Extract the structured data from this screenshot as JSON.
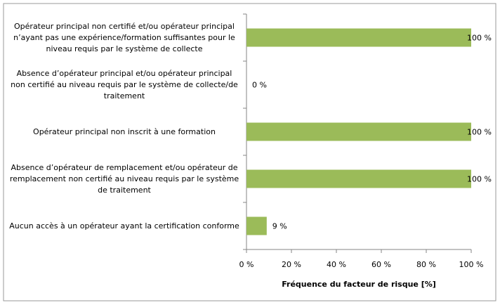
{
  "chart_data": {
    "type": "hbar",
    "xlabel": "Fréquence du facteur de risque [%]",
    "categories": [
      "Opérateur principal non certifié et/ou opérateur principal n’ayant pas une expérience/formation suffisantes pour le niveau requis par le système de collecte",
      "Absence d’opérateur principal et/ou opérateur principal non certifié au niveau requis par le système de collecte/de traitement",
      "Opérateur principal non inscrit à une formation",
      "Absence d’opérateur de remplacement et/ou opérateur de remplacement non certifié au niveau requis par le système de traitement",
      "Aucun accès à un opérateur ayant la certification conforme"
    ],
    "values": [
      100,
      0,
      100,
      100,
      9
    ],
    "value_labels": [
      "100 %",
      "0 %",
      "100 %",
      "100 %",
      "9 %"
    ],
    "color": "#9bbb59",
    "xlim": [
      0,
      100
    ],
    "xticks": [
      {
        "value": 0,
        "label": "0 %"
      },
      {
        "value": 20,
        "label": "20 %"
      },
      {
        "value": 40,
        "label": "40 %"
      },
      {
        "value": 60,
        "label": "60 %"
      },
      {
        "value": 80,
        "label": "80 %"
      },
      {
        "value": 100,
        "label": "100 %"
      }
    ],
    "grid": false
  }
}
